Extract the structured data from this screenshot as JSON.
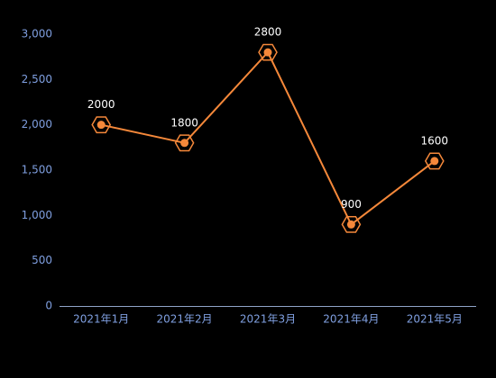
{
  "chart_data": {
    "type": "line",
    "categories": [
      "2021年1月",
      "2021年2月",
      "2021年3月",
      "2021年4月",
      "2021年5月"
    ],
    "values": [
      2000,
      1800,
      2800,
      900,
      1600
    ],
    "color": "#f5883a",
    "ylim": [
      0,
      3000
    ],
    "yticks": [
      0,
      500,
      {
        "value": 1000,
        "label": "1,000"
      },
      {
        "value": 1500,
        "label": "1,500"
      },
      {
        "value": 2000,
        "label": "2,000"
      },
      {
        "value": 2500,
        "label": "2,500"
      },
      {
        "value": 3000,
        "label": "3,000"
      }
    ],
    "grid": false
  }
}
